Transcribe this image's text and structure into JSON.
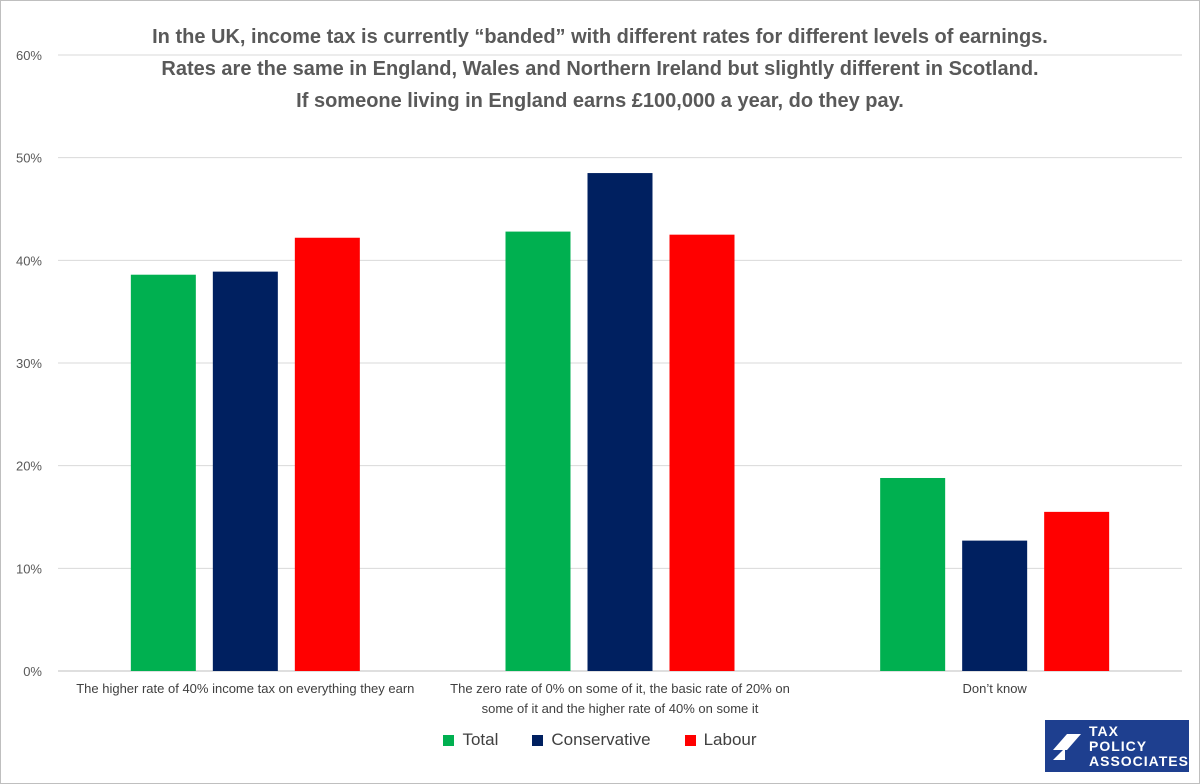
{
  "chart_data": {
    "type": "bar",
    "title": [
      "In the UK, income tax is currently “banded” with different rates for different levels of earnings.",
      "Rates are the same in England, Wales and Northern Ireland but slightly different in Scotland.",
      "If someone living in England earns £100,000 a year, do they pay."
    ],
    "categories": [
      [
        "The higher rate of 40% income tax on everything they earn"
      ],
      [
        "The zero rate of 0% on some of it, the basic rate of 20% on",
        "some of it and the higher rate of 40% on some it"
      ],
      [
        "Don’t know"
      ]
    ],
    "series": [
      {
        "name": "Total",
        "color": "#00b050",
        "values": [
          38.6,
          42.8,
          18.8
        ]
      },
      {
        "name": "Conservative",
        "color": "#002060",
        "values": [
          38.9,
          48.5,
          12.7
        ]
      },
      {
        "name": "Labour",
        "color": "#ff0000",
        "values": [
          42.2,
          42.5,
          15.5
        ]
      }
    ],
    "ylim": [
      0,
      60
    ],
    "yticks": [
      "0%",
      "10%",
      "20%",
      "30%",
      "40%",
      "50%",
      "60%"
    ],
    "grid": true,
    "legend_position": "bottom"
  },
  "logo": {
    "lines": [
      "TAX",
      "POLICY",
      "ASSOCIATES"
    ]
  }
}
